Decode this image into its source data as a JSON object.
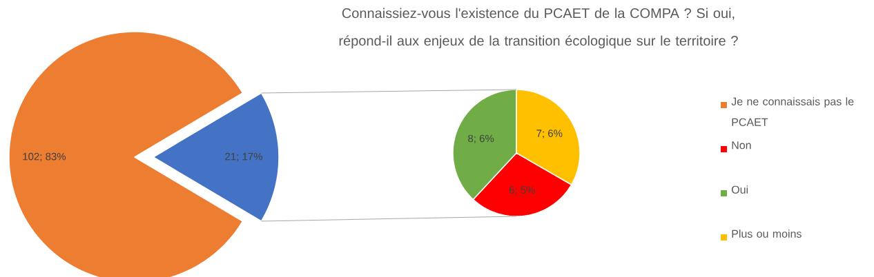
{
  "chart_data": [
    {
      "type": "pie",
      "title": "Connaissiez-vous l'existence du PCAET de la COMPA ? Si oui, répond-il aux enjeux de la transition écologique sur le territoire ?",
      "categories": [
        "Je ne connaissais pas le PCAET",
        null
      ],
      "values": [
        102,
        21
      ],
      "colors": [
        "#ed7d31",
        "#4472c4"
      ],
      "value_labels": [
        "102; 83%",
        "21; 17%"
      ],
      "legend": "right"
    },
    {
      "type": "pie",
      "categories": [
        "Non",
        "Oui",
        "Plus ou moins"
      ],
      "values": [
        6,
        8,
        7
      ],
      "colors": [
        "#ff0000",
        "#70ad47",
        "#ffc000"
      ],
      "value_labels": [
        "6; 5%",
        "8; 6%",
        "7; 6%"
      ],
      "legend": "right"
    }
  ]
}
